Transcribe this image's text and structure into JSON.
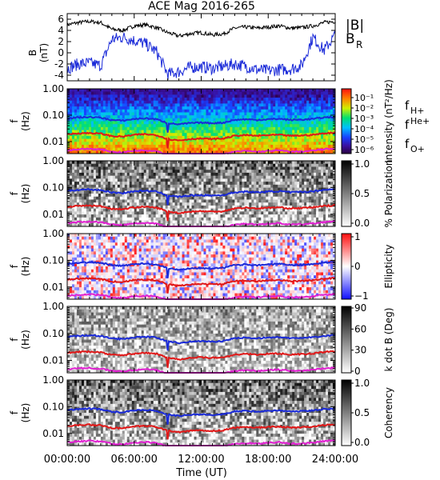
{
  "title": "ACE Mag 2016-265",
  "time_axis": {
    "label": "Time (UT)",
    "tick_labels": [
      "00:00:00",
      "06:00:00",
      "12:00:00",
      "18:00:00",
      "24:00:00"
    ],
    "range_hours": [
      0,
      24
    ]
  },
  "gyro_lines": {
    "labels": [
      "H+",
      "He+",
      "O+"
    ],
    "prefix": "f",
    "colors": [
      "#1a2ad8",
      "#e01818",
      "#e020d0"
    ]
  },
  "colors": {
    "bmag": "#000000",
    "br": "#1a2ad8"
  },
  "chart_data": [
    {
      "type": "line",
      "panel": "field",
      "ylabel_top": "B",
      "ylabel_bottom": "(nT)",
      "ylim": [
        -5,
        7
      ],
      "y_ticks": [
        "6",
        "4",
        "2",
        "0",
        "-2",
        "-4"
      ],
      "legend": [
        "|B|",
        "B_R"
      ],
      "series": [
        {
          "name": "|B|",
          "x": [
            0,
            1,
            2,
            3,
            4,
            5,
            6,
            7,
            8,
            9,
            10,
            11,
            12,
            13,
            14,
            15,
            16,
            17,
            18,
            19,
            20,
            21,
            22,
            23,
            24
          ],
          "values": [
            5.0,
            5.4,
            5.6,
            5.4,
            4.2,
            4.0,
            4.8,
            5.0,
            4.5,
            3.6,
            3.0,
            3.4,
            3.6,
            3.2,
            3.4,
            4.4,
            4.6,
            4.4,
            4.6,
            4.8,
            4.4,
            4.5,
            4.8,
            5.4,
            5.6
          ]
        },
        {
          "name": "B_R",
          "x": [
            0,
            1,
            2,
            3,
            4,
            5,
            6,
            7,
            8,
            9,
            10,
            11,
            12,
            13,
            14,
            15,
            16,
            17,
            18,
            19,
            20,
            21,
            22,
            23,
            24
          ],
          "values": [
            -2.8,
            -2.0,
            -1.8,
            -2.3,
            2.4,
            2.8,
            2.2,
            1.6,
            0.2,
            -3.8,
            -3.4,
            -2.6,
            -2.5,
            -2.8,
            -2.4,
            -2.0,
            -2.4,
            -3.0,
            -3.2,
            -3.0,
            -2.9,
            -2.3,
            2.8,
            0.4,
            3.2
          ]
        }
      ]
    },
    {
      "type": "heatmap",
      "panel": "intensity",
      "ylabel_top": "f",
      "ylabel_bottom": "(Hz)",
      "y_scale": "log",
      "ylim": [
        0.0035,
        1.0
      ],
      "y_ticks": [
        "1.00",
        "0.10",
        "0.01"
      ],
      "colorbar_label": "Intensity (nT²/Hz)",
      "colorbar_ticks": [
        "10⁻¹",
        "10⁻²",
        "10⁻³",
        "10⁻⁴",
        "10⁻⁵",
        "10⁻⁶"
      ],
      "colormap": "rainbow"
    },
    {
      "type": "heatmap",
      "panel": "polarization",
      "ylabel_top": "f",
      "ylabel_bottom": "(Hz)",
      "y_scale": "log",
      "ylim": [
        0.0035,
        1.0
      ],
      "y_ticks": [
        "1.00",
        "0.10",
        "0.01"
      ],
      "colorbar_label": "% Polarization",
      "colorbar_ticks": [
        "1.0",
        "0.5",
        "0.0"
      ],
      "colormap": "gray"
    },
    {
      "type": "heatmap",
      "panel": "ellipticity",
      "ylabel_top": "f",
      "ylabel_bottom": "(Hz)",
      "y_scale": "log",
      "ylim": [
        0.0035,
        1.0
      ],
      "y_ticks": [
        "1.00",
        "0.10",
        "0.01"
      ],
      "colorbar_label": "Ellipticity",
      "colorbar_ticks": [
        "1",
        "0",
        "−1"
      ],
      "colormap": "blue-white-red"
    },
    {
      "type": "heatmap",
      "panel": "kdotb",
      "ylabel_top": "f",
      "ylabel_bottom": "(Hz)",
      "y_scale": "log",
      "ylim": [
        0.0035,
        1.0
      ],
      "y_ticks": [
        "1.00",
        "0.10",
        "0.01"
      ],
      "colorbar_label": "k dot B (Deg)",
      "colorbar_ticks": [
        "90",
        "60",
        "30",
        "0"
      ],
      "colormap": "gray"
    },
    {
      "type": "heatmap",
      "panel": "coherency",
      "ylabel_top": "f",
      "ylabel_bottom": "(Hz)",
      "y_scale": "log",
      "ylim": [
        0.0035,
        1.0
      ],
      "y_ticks": [
        "1.00",
        "0.10",
        "0.01"
      ],
      "colorbar_label": "Coherency",
      "colorbar_ticks": [
        "1.0",
        "0.5",
        "0.0"
      ],
      "colormap": "gray"
    }
  ],
  "gyrofrequencies": {
    "x": [
      0,
      1,
      2,
      3,
      4,
      5,
      6,
      7,
      8,
      9,
      10,
      11,
      12,
      13,
      14,
      15,
      16,
      17,
      18,
      19,
      20,
      21,
      22,
      23,
      24
    ],
    "H+": [
      0.075,
      0.082,
      0.085,
      0.08,
      0.065,
      0.062,
      0.072,
      0.076,
      0.07,
      0.05,
      0.045,
      0.05,
      0.052,
      0.05,
      0.052,
      0.066,
      0.07,
      0.066,
      0.07,
      0.073,
      0.066,
      0.068,
      0.072,
      0.082,
      0.086
    ],
    "He+": [
      0.019,
      0.0205,
      0.021,
      0.02,
      0.016,
      0.0155,
      0.018,
      0.019,
      0.0175,
      0.0125,
      0.011,
      0.0125,
      0.013,
      0.0125,
      0.013,
      0.0165,
      0.0175,
      0.0165,
      0.0175,
      0.018,
      0.0165,
      0.017,
      0.018,
      0.0205,
      0.0215
    ],
    "O+": [
      0.0047,
      0.0051,
      0.0053,
      0.005,
      0.0041,
      0.0039,
      0.0045,
      0.0047,
      0.0044,
      0.0031,
      0.0028,
      0.0031,
      0.0033,
      0.0031,
      0.0033,
      0.0041,
      0.0044,
      0.0041,
      0.0044,
      0.0046,
      0.0041,
      0.0042,
      0.0045,
      0.0051,
      0.0054
    ]
  }
}
